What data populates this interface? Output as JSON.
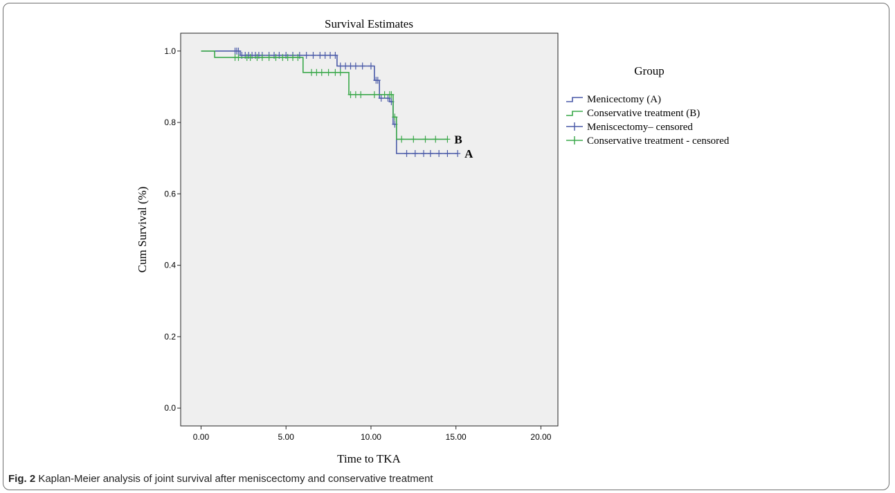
{
  "chart_data": {
    "type": "line",
    "title": "Survival Estimates",
    "xlabel": "Time to TKA",
    "ylabel": "Cum Survival (%)",
    "xlim": [
      -1.2,
      21.0
    ],
    "ylim": [
      -0.05,
      1.05
    ],
    "x_ticks": [
      0,
      5,
      10,
      15,
      20
    ],
    "x_tick_labels": [
      "0.00",
      "5.00",
      "10.00",
      "15.00",
      "20.00"
    ],
    "y_ticks": [
      0.0,
      0.2,
      0.4,
      0.6,
      0.8,
      1.0
    ],
    "y_tick_labels": [
      "0.0",
      "0.2",
      "0.4",
      "0.6",
      "0.8",
      "1.0"
    ],
    "legend_title": "Group",
    "legend_position": "right",
    "grid": false,
    "plot_background": "#efefef",
    "legend": [
      {
        "label": "Menicectomy (A)",
        "kind": "step",
        "color": "#4a5aa8"
      },
      {
        "label": "Conservative treatment (B)",
        "kind": "step",
        "color": "#3aa84a"
      },
      {
        "label": "Meniscectomy– censored",
        "kind": "censor",
        "color": "#4a5aa8"
      },
      {
        "label": "Conservative treatment - censored",
        "kind": "censor",
        "color": "#3aa84a"
      }
    ],
    "series": [
      {
        "name": "Menicectomy (A)",
        "color": "#4a5aa8",
        "label": "A",
        "steps": [
          [
            0,
            1.0
          ],
          [
            2.3,
            1.0
          ],
          [
            2.3,
            0.988
          ],
          [
            8.0,
            0.988
          ],
          [
            8.0,
            0.958
          ],
          [
            10.2,
            0.958
          ],
          [
            10.2,
            0.918
          ],
          [
            10.5,
            0.918
          ],
          [
            10.5,
            0.868
          ],
          [
            11.1,
            0.868
          ],
          [
            11.1,
            0.858
          ],
          [
            11.3,
            0.858
          ],
          [
            11.3,
            0.795
          ],
          [
            11.5,
            0.795
          ],
          [
            11.5,
            0.713
          ],
          [
            15.1,
            0.713
          ]
        ],
        "censored": [
          [
            2.0,
            1.0
          ],
          [
            2.1,
            1.0
          ],
          [
            2.2,
            1.0
          ],
          [
            2.4,
            0.988
          ],
          [
            2.6,
            0.988
          ],
          [
            2.8,
            0.988
          ],
          [
            3.0,
            0.988
          ],
          [
            3.2,
            0.988
          ],
          [
            3.4,
            0.988
          ],
          [
            3.6,
            0.988
          ],
          [
            4.0,
            0.988
          ],
          [
            4.3,
            0.988
          ],
          [
            4.6,
            0.988
          ],
          [
            5.0,
            0.988
          ],
          [
            5.4,
            0.988
          ],
          [
            5.8,
            0.988
          ],
          [
            6.2,
            0.988
          ],
          [
            6.6,
            0.988
          ],
          [
            7.0,
            0.988
          ],
          [
            7.3,
            0.988
          ],
          [
            7.6,
            0.988
          ],
          [
            7.9,
            0.988
          ],
          [
            8.2,
            0.958
          ],
          [
            8.5,
            0.958
          ],
          [
            8.8,
            0.958
          ],
          [
            9.1,
            0.958
          ],
          [
            9.5,
            0.958
          ],
          [
            10.0,
            0.958
          ],
          [
            10.3,
            0.918
          ],
          [
            10.4,
            0.918
          ],
          [
            10.6,
            0.868
          ],
          [
            11.0,
            0.868
          ],
          [
            11.2,
            0.858
          ],
          [
            11.4,
            0.795
          ],
          [
            12.1,
            0.713
          ],
          [
            12.6,
            0.713
          ],
          [
            13.1,
            0.713
          ],
          [
            13.5,
            0.713
          ],
          [
            14.0,
            0.713
          ],
          [
            14.5,
            0.713
          ],
          [
            15.1,
            0.713
          ]
        ]
      },
      {
        "name": "Conservative treatment (B)",
        "color": "#3aa84a",
        "label": "B",
        "steps": [
          [
            0,
            1.0
          ],
          [
            0.8,
            1.0
          ],
          [
            0.8,
            0.982
          ],
          [
            6.0,
            0.982
          ],
          [
            6.0,
            0.94
          ],
          [
            8.7,
            0.94
          ],
          [
            8.7,
            0.878
          ],
          [
            11.3,
            0.878
          ],
          [
            11.3,
            0.815
          ],
          [
            11.5,
            0.815
          ],
          [
            11.5,
            0.753
          ],
          [
            14.5,
            0.753
          ]
        ],
        "censored": [
          [
            2.0,
            0.982
          ],
          [
            2.2,
            0.982
          ],
          [
            2.7,
            0.982
          ],
          [
            2.9,
            0.982
          ],
          [
            3.3,
            0.982
          ],
          [
            3.6,
            0.982
          ],
          [
            4.0,
            0.982
          ],
          [
            4.4,
            0.982
          ],
          [
            4.8,
            0.982
          ],
          [
            5.1,
            0.982
          ],
          [
            5.4,
            0.982
          ],
          [
            5.7,
            0.982
          ],
          [
            6.5,
            0.94
          ],
          [
            6.8,
            0.94
          ],
          [
            7.1,
            0.94
          ],
          [
            7.5,
            0.94
          ],
          [
            7.9,
            0.94
          ],
          [
            8.2,
            0.94
          ],
          [
            8.8,
            0.878
          ],
          [
            9.1,
            0.878
          ],
          [
            9.4,
            0.878
          ],
          [
            10.2,
            0.878
          ],
          [
            10.8,
            0.878
          ],
          [
            11.1,
            0.878
          ],
          [
            11.2,
            0.878
          ],
          [
            11.4,
            0.815
          ],
          [
            11.8,
            0.753
          ],
          [
            12.5,
            0.753
          ],
          [
            13.2,
            0.753
          ],
          [
            13.8,
            0.753
          ],
          [
            14.5,
            0.753
          ]
        ]
      }
    ]
  },
  "caption": {
    "label": "Fig. 2",
    "text": " Kaplan-Meier analysis of joint survival after meniscectomy and conservative treatment"
  }
}
